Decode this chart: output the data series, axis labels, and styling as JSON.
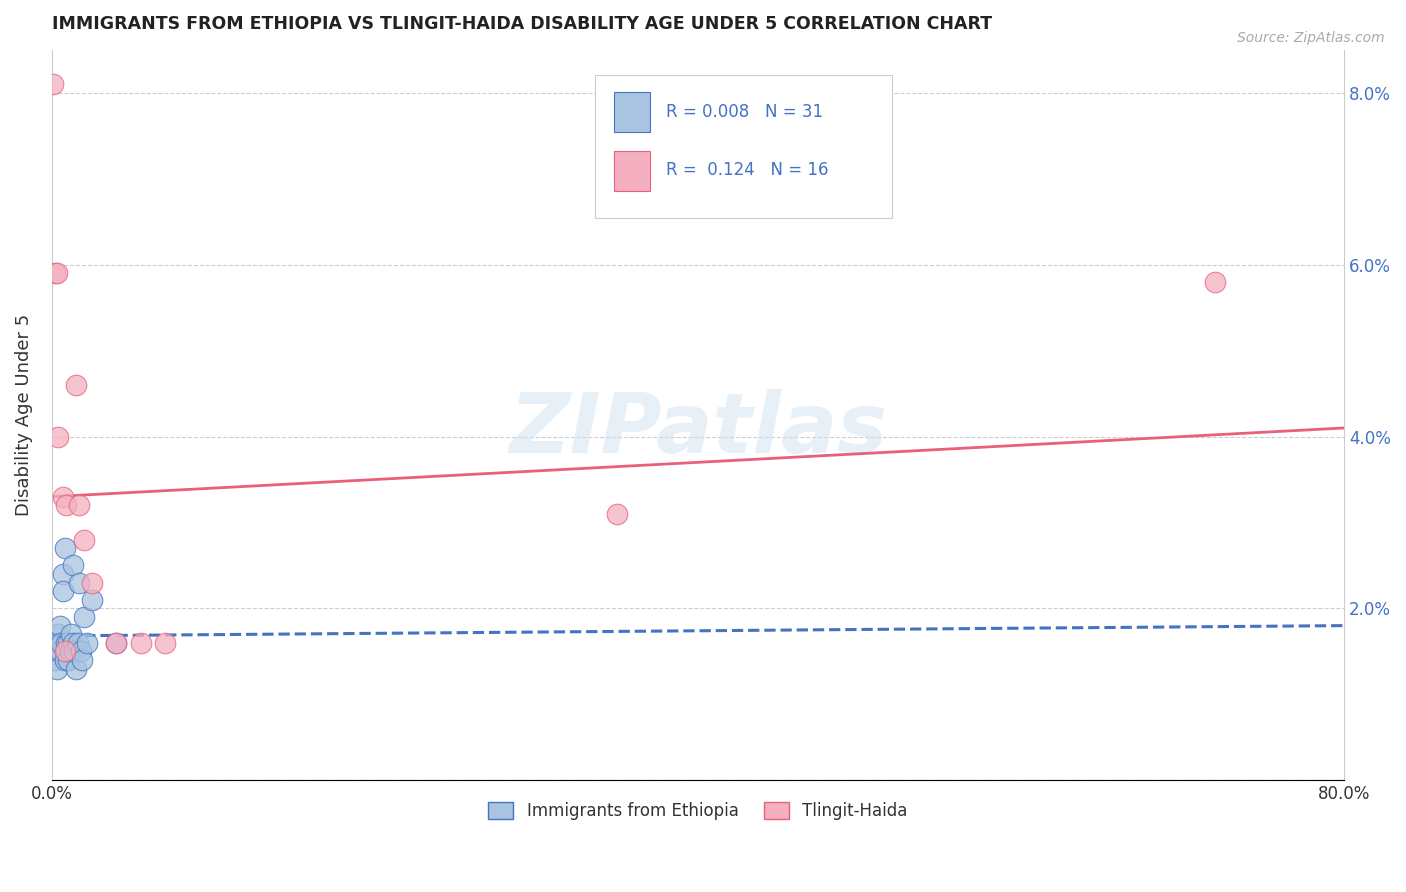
{
  "title": "IMMIGRANTS FROM ETHIOPIA VS TLINGIT-HAIDA DISABILITY AGE UNDER 5 CORRELATION CHART",
  "source": "Source: ZipAtlas.com",
  "ylabel_label": "Disability Age Under 5",
  "xmin": 0.0,
  "xmax": 0.8,
  "ymin": 0.0,
  "ymax": 0.085,
  "xticks": [
    0.0,
    0.2,
    0.4,
    0.6,
    0.8
  ],
  "xtick_labels": [
    "0.0%",
    "",
    "",
    "",
    "80.0%"
  ],
  "yticks": [
    0.0,
    0.02,
    0.04,
    0.06,
    0.08
  ],
  "ytick_labels_right": [
    "",
    "2.0%",
    "4.0%",
    "6.0%",
    "8.0%"
  ],
  "legend_entries": [
    {
      "label": "Immigrants from Ethiopia",
      "color": "#a8c4e0"
    },
    {
      "label": "Tlingit-Haida",
      "color": "#f4a0b0"
    }
  ],
  "r_ethiopia": 0.008,
  "n_ethiopia": 31,
  "r_tlingit": 0.124,
  "n_tlingit": 16,
  "watermark": "ZIPatlas",
  "blue_scatter_x": [
    0.001,
    0.002,
    0.002,
    0.003,
    0.004,
    0.004,
    0.005,
    0.005,
    0.006,
    0.007,
    0.007,
    0.008,
    0.008,
    0.009,
    0.009,
    0.01,
    0.01,
    0.011,
    0.012,
    0.013,
    0.013,
    0.014,
    0.015,
    0.016,
    0.017,
    0.018,
    0.019,
    0.02,
    0.022,
    0.025,
    0.04
  ],
  "blue_scatter_y": [
    0.016,
    0.015,
    0.014,
    0.013,
    0.017,
    0.016,
    0.018,
    0.015,
    0.016,
    0.024,
    0.022,
    0.027,
    0.014,
    0.016,
    0.015,
    0.014,
    0.016,
    0.015,
    0.017,
    0.025,
    0.016,
    0.015,
    0.013,
    0.016,
    0.023,
    0.015,
    0.014,
    0.019,
    0.016,
    0.021,
    0.016
  ],
  "pink_scatter_x": [
    0.001,
    0.002,
    0.003,
    0.004,
    0.007,
    0.008,
    0.009,
    0.015,
    0.017,
    0.02,
    0.025,
    0.04,
    0.055,
    0.07,
    0.35,
    0.72
  ],
  "pink_scatter_y": [
    0.081,
    0.059,
    0.059,
    0.04,
    0.033,
    0.015,
    0.032,
    0.046,
    0.032,
    0.028,
    0.023,
    0.016,
    0.016,
    0.016,
    0.031,
    0.058
  ],
  "blue_line_x0": 0.0,
  "blue_line_x1": 0.8,
  "blue_line_y0": 0.0168,
  "blue_line_y1": 0.018,
  "pink_line_x0": 0.0,
  "pink_line_x1": 0.8,
  "pink_line_y0": 0.033,
  "pink_line_y1": 0.041,
  "blue_line_color": "#4472c4",
  "pink_line_color": "#e8607a",
  "dot_blue_color": "#a8c4e0",
  "dot_pink_color": "#f4b0c0",
  "background_color": "#ffffff",
  "grid_color": "#c8c8c8",
  "title_color": "#222222",
  "axis_label_color": "#333333",
  "tick_label_color": "#4472c4",
  "source_color": "#aaaaaa",
  "watermark_color": "#d0e0f0"
}
